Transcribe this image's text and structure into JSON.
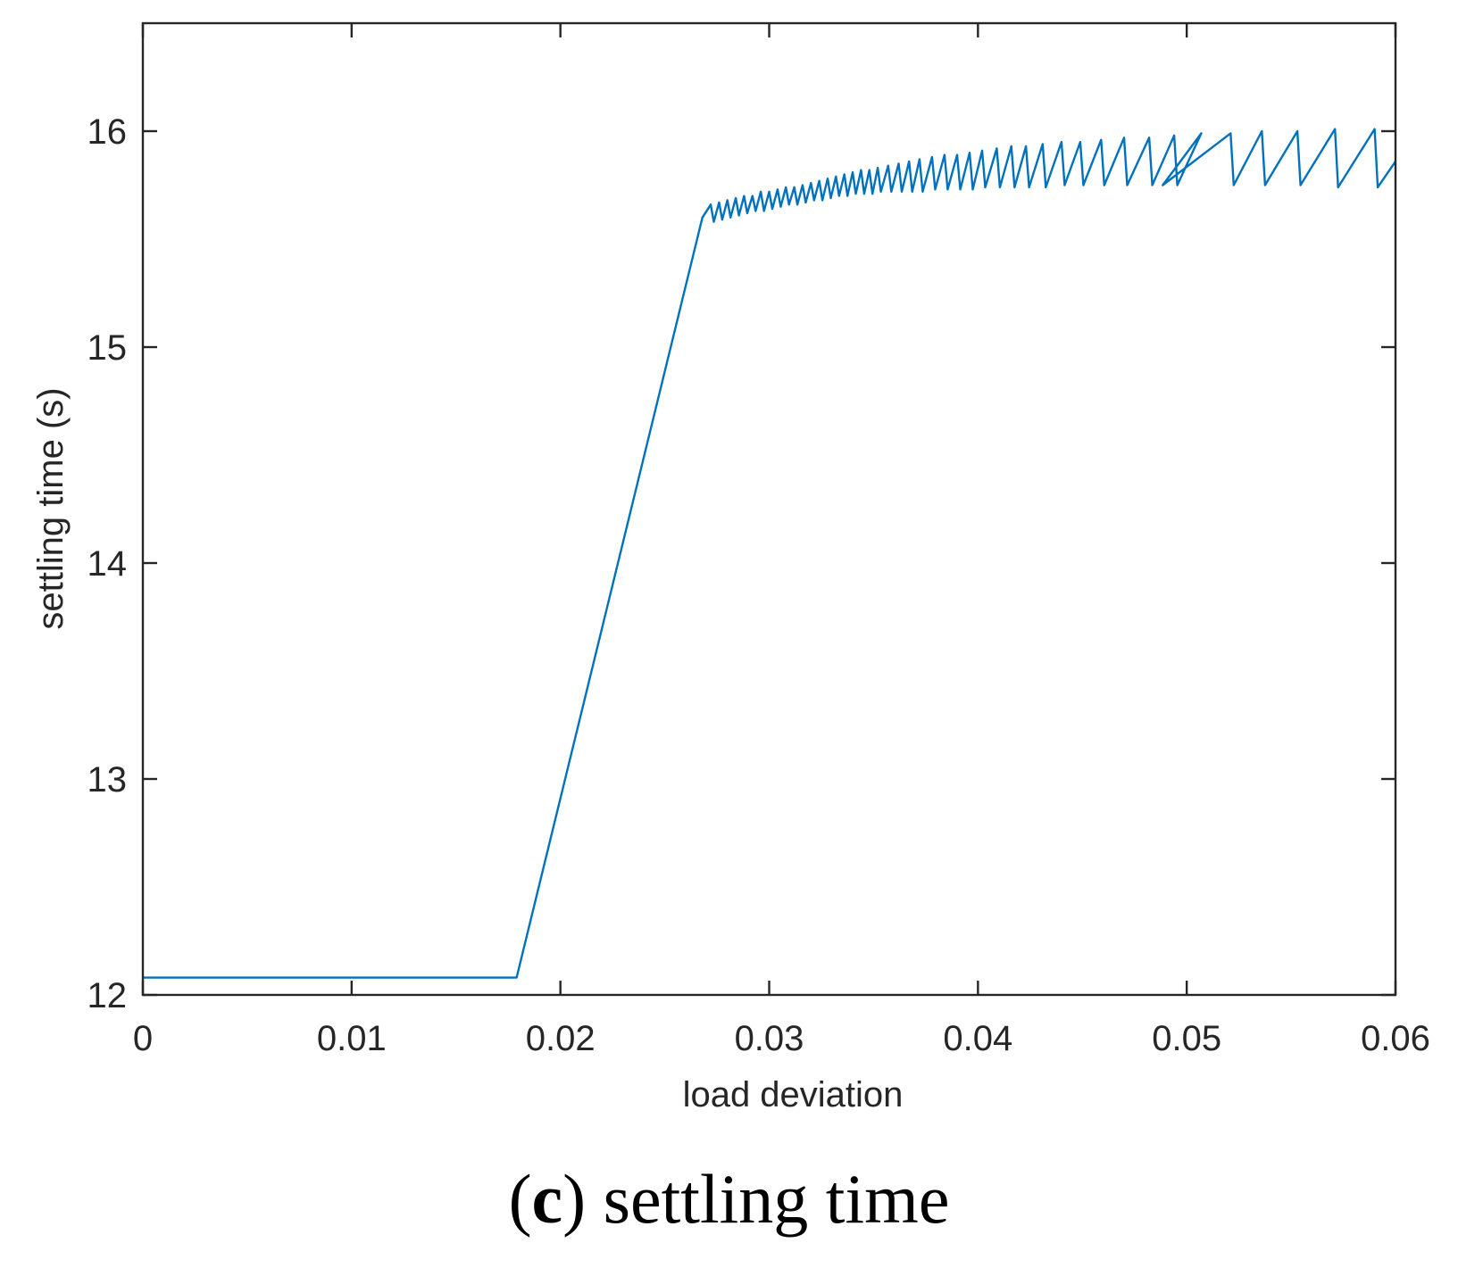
{
  "caption": {
    "open": "(",
    "letter": "c",
    "text": ") settling time"
  },
  "chart_data": {
    "type": "line",
    "xlabel": "load deviation",
    "ylabel": "settling time (s)",
    "xlim": [
      0,
      0.06
    ],
    "ylim": [
      12,
      16.5
    ],
    "xticks": [
      0,
      0.01,
      0.02,
      0.03,
      0.04,
      0.05,
      0.06
    ],
    "xtick_labels": [
      "0",
      "0.01",
      "0.02",
      "0.03",
      "0.04",
      "0.05",
      "0.06"
    ],
    "yticks": [
      12,
      13,
      14,
      15,
      16
    ],
    "ytick_labels": [
      "12",
      "13",
      "14",
      "15",
      "16"
    ],
    "grid": false,
    "line_color": "#0072BD",
    "series": [
      {
        "x": [
          0,
          0.0179,
          0.0268,
          0.0272,
          0.02735,
          0.0276,
          0.02775,
          0.028,
          0.02815,
          0.0284,
          0.02855,
          0.0288,
          0.02895,
          0.0292,
          0.02935,
          0.0296,
          0.02975,
          0.03,
          0.03015,
          0.0304,
          0.03055,
          0.0308,
          0.03095,
          0.0312,
          0.03135,
          0.0316,
          0.03175,
          0.032,
          0.03215,
          0.0324,
          0.03255,
          0.0328,
          0.03295,
          0.0332,
          0.03335,
          0.0336,
          0.03375,
          0.034,
          0.03415,
          0.0344,
          0.03455,
          0.0348,
          0.03495,
          0.0352,
          0.03535,
          0.0357,
          0.03585,
          0.0362,
          0.03635,
          0.0367,
          0.03685,
          0.0372,
          0.03735,
          0.0378,
          0.03795,
          0.0384,
          0.03855,
          0.039,
          0.03915,
          0.0396,
          0.03975,
          0.0402,
          0.04035,
          0.0409,
          0.04105,
          0.0416,
          0.04175,
          0.0423,
          0.04245,
          0.0431,
          0.04325,
          0.044,
          0.04415,
          0.0449,
          0.04505,
          0.0459,
          0.04605,
          0.047,
          0.04715,
          0.0482,
          0.04835,
          0.0494,
          0.04955,
          0.0507,
          0.04885,
          0.0521,
          0.05225,
          0.0536,
          0.05375,
          0.0553,
          0.05545,
          0.0571,
          0.05725,
          0.059,
          0.05915,
          0.06
        ],
        "y": [
          12.08,
          12.08,
          15.6,
          15.66,
          15.58,
          15.67,
          15.59,
          15.68,
          15.6,
          15.69,
          15.61,
          15.7,
          15.62,
          15.7,
          15.63,
          15.72,
          15.63,
          15.72,
          15.64,
          15.73,
          15.65,
          15.74,
          15.66,
          15.74,
          15.66,
          15.75,
          15.67,
          15.76,
          15.68,
          15.77,
          15.68,
          15.78,
          15.69,
          15.79,
          15.7,
          15.8,
          15.7,
          15.81,
          15.71,
          15.82,
          15.71,
          15.82,
          15.71,
          15.83,
          15.72,
          15.84,
          15.72,
          15.85,
          15.72,
          15.86,
          15.72,
          15.87,
          15.72,
          15.88,
          15.73,
          15.89,
          15.73,
          15.89,
          15.73,
          15.9,
          15.73,
          15.91,
          15.74,
          15.92,
          15.74,
          15.93,
          15.74,
          15.93,
          15.74,
          15.94,
          15.74,
          15.95,
          15.75,
          15.95,
          15.75,
          15.96,
          15.75,
          15.97,
          15.75,
          15.97,
          15.75,
          15.98,
          15.75,
          15.99,
          15.75,
          15.99,
          15.75,
          16.0,
          15.75,
          16.0,
          15.75,
          16.01,
          15.74,
          16.01,
          15.74,
          15.86
        ]
      }
    ]
  }
}
